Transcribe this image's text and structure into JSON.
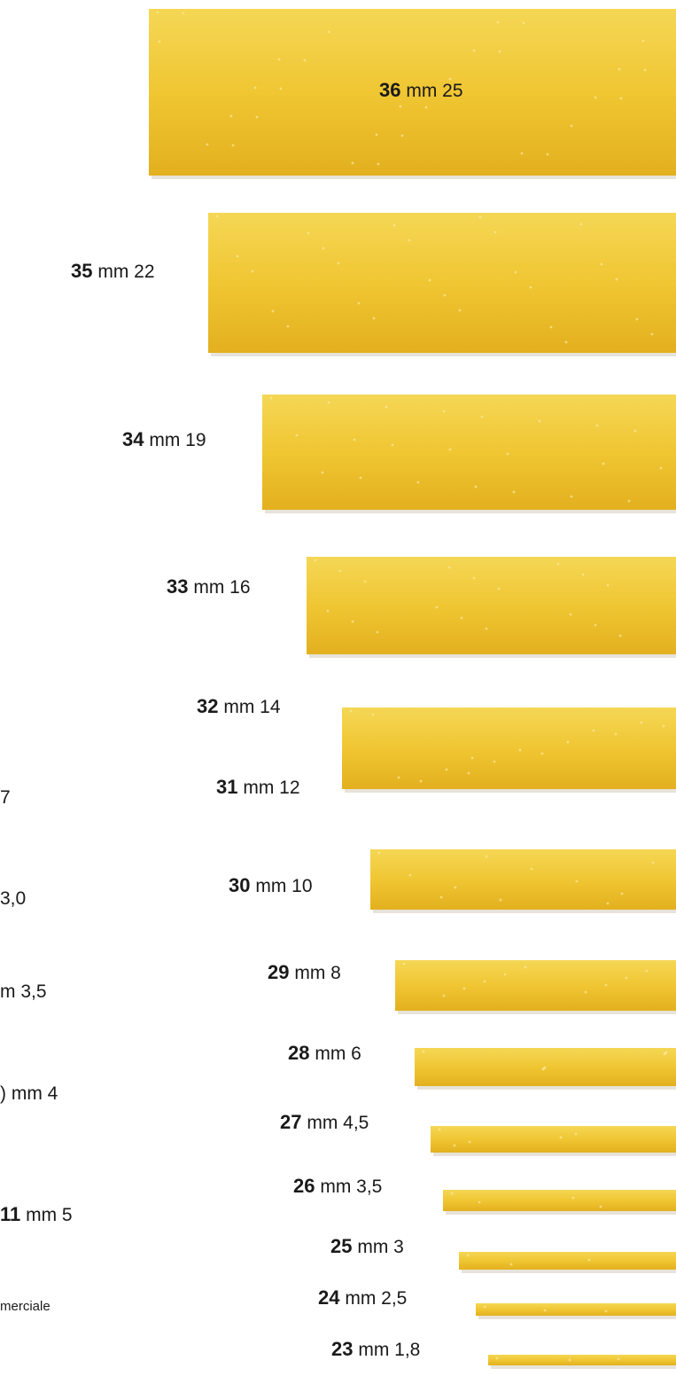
{
  "unit": "mm",
  "pasta_colors": {
    "top": "#f2cf3c",
    "main": "#f0c330",
    "bottom": "#e2ae1e",
    "shadow": "#c9c2ae"
  },
  "sizes": [
    {
      "number": "36",
      "width": "25"
    },
    {
      "number": "35",
      "width": "22"
    },
    {
      "number": "34",
      "width": "19"
    },
    {
      "number": "33",
      "width": "16"
    },
    {
      "number": "32",
      "width": "14"
    },
    {
      "number": "31",
      "width": "12"
    },
    {
      "number": "30",
      "width": "10"
    },
    {
      "number": "29",
      "width": "8"
    },
    {
      "number": "28",
      "width": "6"
    },
    {
      "number": "27",
      "width": "4,5"
    },
    {
      "number": "26",
      "width": "3,5"
    },
    {
      "number": "25",
      "width": "3"
    },
    {
      "number": "24",
      "width": "2,5"
    },
    {
      "number": "23",
      "width": "1,8"
    }
  ],
  "left_column_partial": [
    "7",
    "3,0",
    "m 3,5",
    ") mm 4",
    "11",
    "mm 5"
  ],
  "footer_partial": "merciale"
}
